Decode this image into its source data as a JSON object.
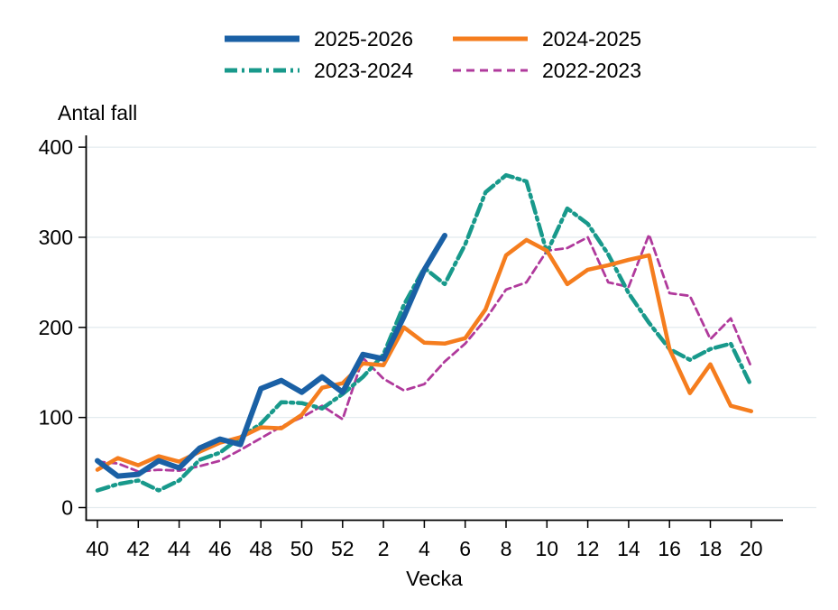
{
  "page": {
    "background": "#ffffff"
  },
  "colors": {
    "axis": "#000000",
    "gridline": "#e4ecef",
    "text": "#000000"
  },
  "legend": {
    "items": [
      {
        "label": "2025-2026",
        "color": "#1a60a5",
        "style": "solid-thick"
      },
      {
        "label": "2024-2025",
        "color": "#f57d1e",
        "style": "solid"
      },
      {
        "label": "2023-2024",
        "color": "#18998b",
        "style": "dash-dot"
      },
      {
        "label": "2022-2023",
        "color": "#b03a9c",
        "style": "dashed"
      }
    ]
  },
  "chart_data": {
    "type": "line",
    "title": "",
    "ylabel": "Antal fall",
    "xlabel": "Vecka",
    "grid": "horizontal",
    "legend_position": "top-center",
    "ylim": [
      0,
      400
    ],
    "yticks": [
      0,
      100,
      200,
      300,
      400
    ],
    "categories": [
      "40",
      "41",
      "42",
      "43",
      "44",
      "45",
      "46",
      "47",
      "48",
      "49",
      "50",
      "51",
      "52",
      "1",
      "2",
      "3",
      "4",
      "5",
      "6",
      "7",
      "8",
      "9",
      "10",
      "11",
      "12",
      "13",
      "14",
      "15",
      "16",
      "17",
      "18",
      "19",
      "20"
    ],
    "xtick_labels": [
      "40",
      "42",
      "44",
      "46",
      "48",
      "50",
      "52",
      "2",
      "4",
      "6",
      "8",
      "10",
      "12",
      "14",
      "16",
      "18",
      "20"
    ],
    "series": [
      {
        "name": "2025-2026",
        "color": "#1a60a5",
        "dash": "solid",
        "width": 6,
        "values": [
          52,
          35,
          37,
          52,
          44,
          66,
          76,
          70,
          132,
          141,
          128,
          145,
          128,
          170,
          165,
          212,
          264,
          302
        ]
      },
      {
        "name": "2024-2025",
        "color": "#f57d1e",
        "dash": "solid",
        "width": 4.5,
        "values": [
          42,
          55,
          47,
          57,
          51,
          62,
          72,
          78,
          89,
          88,
          103,
          133,
          138,
          160,
          158,
          200,
          183,
          182,
          188,
          220,
          280,
          297,
          285,
          248,
          264,
          269,
          275,
          280,
          176,
          127,
          159,
          113,
          107
        ]
      },
      {
        "name": "2023-2024",
        "color": "#18998b",
        "dash": "dash-dot",
        "width": 4.5,
        "values": [
          19,
          26,
          30,
          19,
          30,
          53,
          61,
          78,
          93,
          117,
          116,
          110,
          126,
          145,
          170,
          225,
          266,
          248,
          292,
          350,
          369,
          362,
          283,
          332,
          315,
          281,
          238,
          205,
          176,
          164,
          176,
          182,
          135
        ]
      },
      {
        "name": "2022-2023",
        "color": "#b03a9c",
        "dash": "dashed",
        "width": 2.8,
        "values": [
          51,
          49,
          40,
          42,
          41,
          46,
          52,
          64,
          77,
          90,
          100,
          113,
          98,
          166,
          143,
          130,
          137,
          162,
          182,
          209,
          242,
          250,
          285,
          288,
          300,
          250,
          245,
          303,
          238,
          235,
          187,
          210,
          156
        ]
      }
    ]
  }
}
